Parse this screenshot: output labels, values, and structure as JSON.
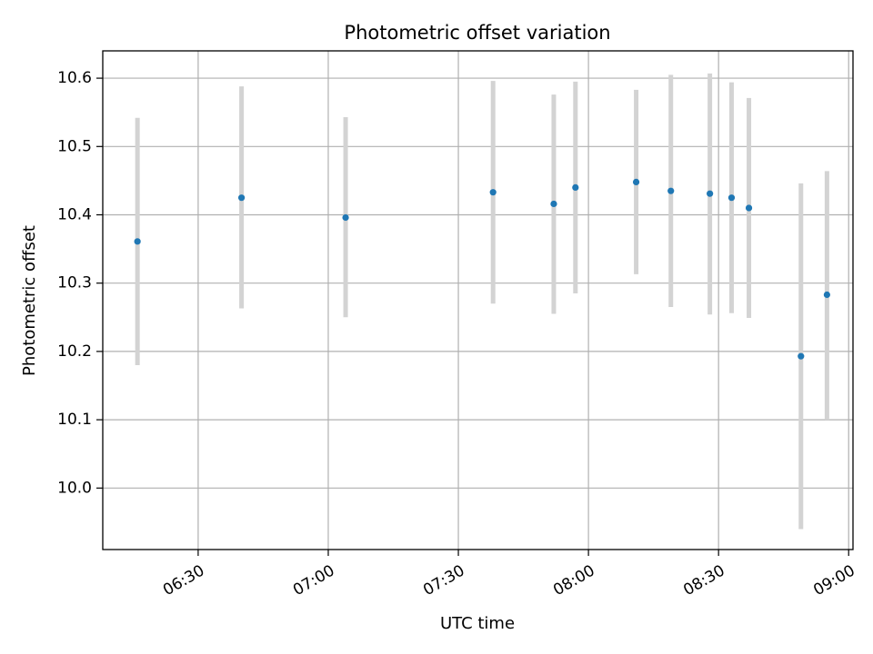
{
  "chart_data": {
    "type": "scatter",
    "title": "Photometric offset variation",
    "xlabel": "UTC time",
    "ylabel": "Photometric offset",
    "x_ticks": [
      "06:30",
      "07:00",
      "07:30",
      "08:00",
      "08:30",
      "09:00"
    ],
    "y_ticks": [
      "10.0",
      "10.1",
      "10.2",
      "10.3",
      "10.4",
      "10.5",
      "10.6"
    ],
    "xlim": [
      "06:08",
      "09:01"
    ],
    "ylim": [
      9.91,
      10.64
    ],
    "grid": true,
    "colors": {
      "point": "#1f77b4",
      "errorbar": "#d3d3d3",
      "grid": "#b0b0b0"
    },
    "series": [
      {
        "points": [
          {
            "x": "06:16",
            "y": 10.361,
            "ylow": 10.18,
            "yhigh": 10.542
          },
          {
            "x": "06:40",
            "y": 10.425,
            "ylow": 10.263,
            "yhigh": 10.588
          },
          {
            "x": "07:04",
            "y": 10.396,
            "ylow": 10.25,
            "yhigh": 10.543
          },
          {
            "x": "07:38",
            "y": 10.433,
            "ylow": 10.27,
            "yhigh": 10.596
          },
          {
            "x": "07:52",
            "y": 10.416,
            "ylow": 10.255,
            "yhigh": 10.576
          },
          {
            "x": "07:57",
            "y": 10.44,
            "ylow": 10.285,
            "yhigh": 10.595
          },
          {
            "x": "08:11",
            "y": 10.448,
            "ylow": 10.313,
            "yhigh": 10.583
          },
          {
            "x": "08:19",
            "y": 10.435,
            "ylow": 10.265,
            "yhigh": 10.605
          },
          {
            "x": "08:28",
            "y": 10.431,
            "ylow": 10.254,
            "yhigh": 10.607
          },
          {
            "x": "08:33",
            "y": 10.425,
            "ylow": 10.256,
            "yhigh": 10.594
          },
          {
            "x": "08:37",
            "y": 10.41,
            "ylow": 10.249,
            "yhigh": 10.571
          },
          {
            "x": "08:49",
            "y": 10.193,
            "ylow": 9.94,
            "yhigh": 10.446
          },
          {
            "x": "08:55",
            "y": 10.283,
            "ylow": 10.1,
            "yhigh": 10.464
          }
        ]
      }
    ]
  }
}
